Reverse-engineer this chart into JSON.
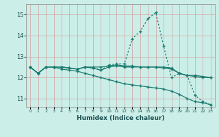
{
  "xlabel": "Humidex (Indice chaleur)",
  "bg_color": "#cceee8",
  "line_color": "#1a7a6e",
  "grid_color": "#d4a0a0",
  "xlim": [
    -0.5,
    23.5
  ],
  "ylim": [
    10.6,
    15.5
  ],
  "yticks": [
    11,
    12,
    13,
    14,
    15
  ],
  "xticks": [
    0,
    1,
    2,
    3,
    4,
    5,
    6,
    7,
    8,
    9,
    10,
    11,
    12,
    13,
    14,
    15,
    16,
    17,
    18,
    19,
    20,
    21,
    22,
    23
  ],
  "lines": [
    {
      "x": [
        0,
        1,
        2,
        3,
        4,
        5,
        6,
        7,
        8,
        9,
        10,
        11,
        12,
        13,
        14,
        15,
        16,
        17,
        18,
        19,
        20,
        21,
        22,
        23
      ],
      "y": [
        12.5,
        12.2,
        12.5,
        12.5,
        12.5,
        12.45,
        12.4,
        12.5,
        12.45,
        12.35,
        12.6,
        12.65,
        12.65,
        13.85,
        14.2,
        14.8,
        15.1,
        13.5,
        12.0,
        12.2,
        12.1,
        11.15,
        10.85,
        10.7
      ],
      "style": "dotted",
      "marker": "+"
    },
    {
      "x": [
        0,
        1,
        2,
        3,
        4,
        5,
        6,
        7,
        8,
        9,
        10,
        11,
        12,
        13,
        14,
        15,
        16,
        17,
        18,
        19,
        20,
        21,
        22,
        23
      ],
      "y": [
        12.5,
        12.2,
        12.5,
        12.5,
        12.5,
        12.45,
        12.4,
        12.5,
        12.45,
        12.35,
        12.5,
        12.55,
        12.5,
        12.5,
        12.5,
        12.5,
        12.5,
        12.5,
        12.45,
        12.2,
        12.1,
        12.1,
        12.05,
        12.0
      ],
      "style": "solid",
      "marker": "+"
    },
    {
      "x": [
        0,
        1,
        2,
        3,
        4,
        5,
        6,
        7,
        8,
        9,
        10,
        11,
        12,
        13,
        14,
        15,
        16,
        17,
        18,
        19,
        20,
        21,
        22,
        23
      ],
      "y": [
        12.5,
        12.2,
        12.5,
        12.5,
        12.4,
        12.35,
        12.3,
        12.2,
        12.1,
        12.0,
        11.9,
        11.8,
        11.7,
        11.65,
        11.6,
        11.55,
        11.5,
        11.45,
        11.35,
        11.2,
        11.0,
        10.85,
        10.8,
        10.7
      ],
      "style": "solid",
      "marker": "+"
    },
    {
      "x": [
        0,
        1,
        2,
        3,
        4,
        5,
        6,
        7,
        8,
        9,
        10,
        11,
        12,
        13,
        14,
        15,
        16,
        17,
        18,
        19,
        20,
        21,
        22,
        23
      ],
      "y": [
        12.5,
        12.2,
        12.5,
        12.5,
        12.5,
        12.45,
        12.4,
        12.5,
        12.5,
        12.5,
        12.55,
        12.6,
        12.55,
        12.55,
        12.5,
        12.5,
        12.5,
        12.45,
        12.4,
        12.2,
        12.1,
        12.05,
        12.0,
        12.0
      ],
      "style": "solid",
      "marker": "+"
    }
  ]
}
